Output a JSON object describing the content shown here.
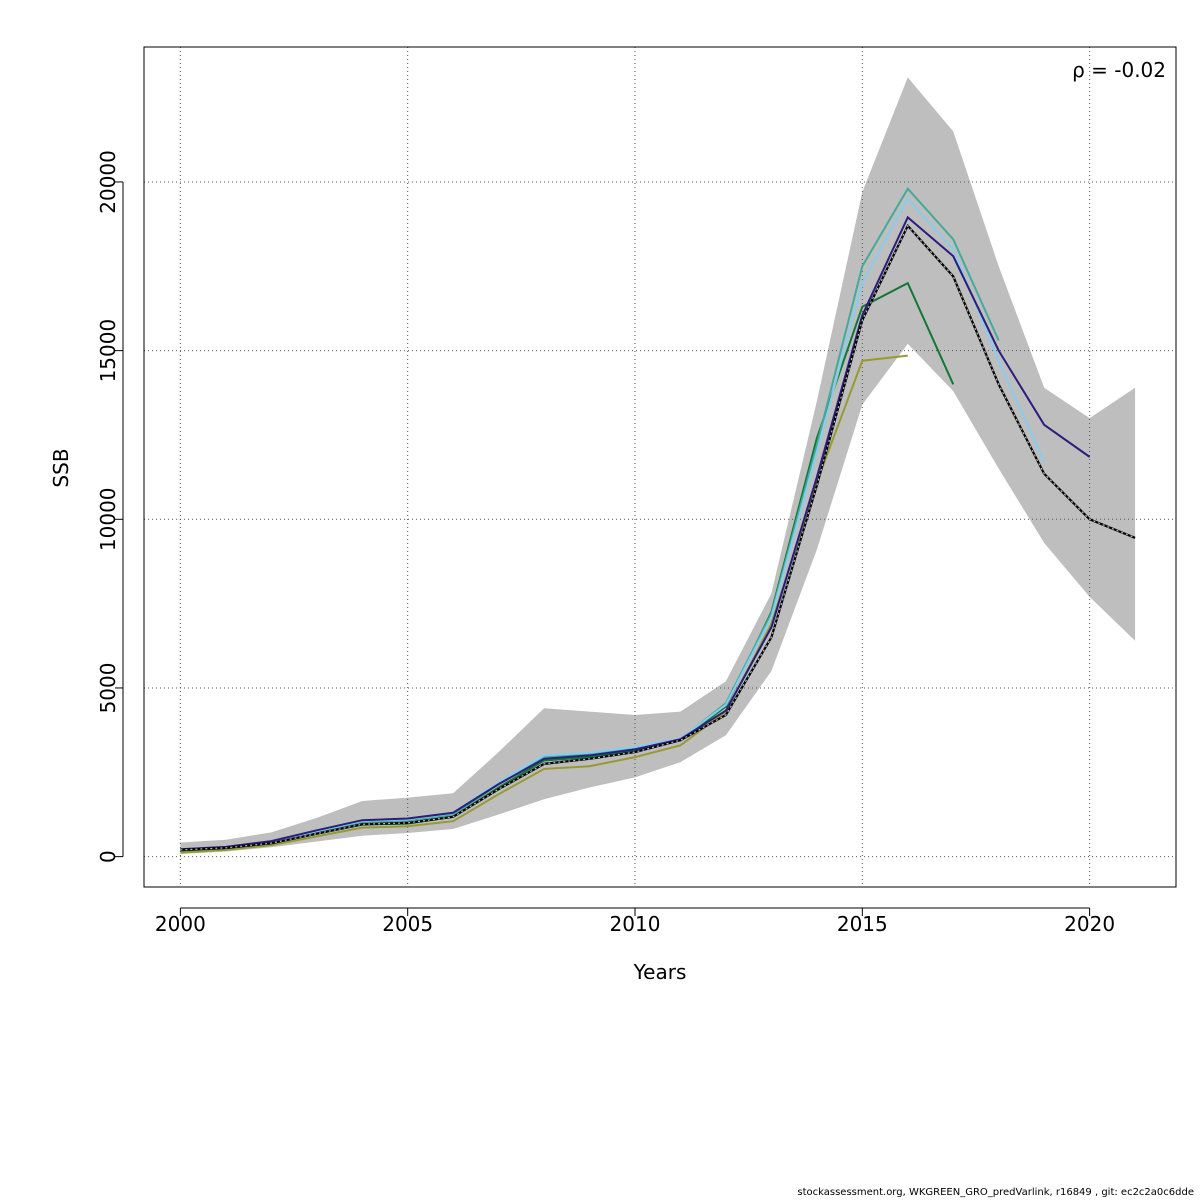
{
  "chart_data": {
    "type": "line",
    "xlabel": "Years",
    "ylabel": "SSB",
    "annotation": "ρ = -0.02",
    "xlim": [
      1999.2,
      2021.9
    ],
    "ylim": [
      -900,
      24000
    ],
    "x_ticks": [
      2000,
      2005,
      2010,
      2015,
      2020
    ],
    "y_ticks": [
      0,
      5000,
      10000,
      15000,
      20000
    ],
    "grid": true,
    "confidence_band": {
      "x": [
        2000,
        2001,
        2002,
        2003,
        2004,
        2005,
        2006,
        2007,
        2008,
        2009,
        2010,
        2011,
        2012,
        2013,
        2014,
        2015,
        2016,
        2017,
        2018,
        2019,
        2020,
        2021
      ],
      "lower": [
        80,
        150,
        280,
        450,
        620,
        700,
        820,
        1250,
        1700,
        2050,
        2350,
        2800,
        3600,
        5500,
        9100,
        13400,
        15200,
        13800,
        11500,
        9300,
        7700,
        6400
      ],
      "upper": [
        420,
        500,
        720,
        1150,
        1650,
        1750,
        1880,
        3100,
        4400,
        4300,
        4200,
        4300,
        5200,
        7800,
        13500,
        19700,
        23100,
        21500,
        17500,
        13900,
        13000,
        13900
      ]
    },
    "series": [
      {
        "color": "#333333",
        "dashed": true,
        "x": [
          2000,
          2001,
          2002,
          2003,
          2004,
          2005,
          2006,
          2007,
          2008,
          2009,
          2010,
          2011,
          2012,
          2013,
          2014,
          2015,
          2016,
          2017,
          2018,
          2019,
          2020,
          2021
        ],
        "values": [
          200,
          260,
          400,
          680,
          960,
          1000,
          1180,
          2000,
          2750,
          2900,
          3100,
          3450,
          4200,
          6500,
          11000,
          15900,
          18700,
          17200,
          14000,
          11350,
          10000,
          9450
        ]
      },
      {
        "color": "#2b1d7e",
        "dashed": false,
        "x": [
          2000,
          2001,
          2002,
          2003,
          2004,
          2005,
          2006,
          2007,
          2008,
          2009,
          2010,
          2011,
          2012,
          2013,
          2014,
          2015,
          2016,
          2017,
          2018,
          2019,
          2020
        ],
        "values": [
          220,
          290,
          460,
          780,
          1080,
          1130,
          1300,
          2150,
          2900,
          3000,
          3180,
          3480,
          4330,
          6800,
          11250,
          16050,
          18950,
          17800,
          15000,
          12800,
          11850
        ]
      },
      {
        "color": "#88ccee",
        "dashed": false,
        "x": [
          2000,
          2001,
          2002,
          2003,
          2004,
          2005,
          2006,
          2007,
          2008,
          2009,
          2010,
          2011,
          2012,
          2013,
          2014,
          2015,
          2016,
          2017,
          2018,
          2019
        ],
        "values": [
          210,
          280,
          440,
          760,
          1060,
          1110,
          1290,
          2200,
          3000,
          3080,
          3250,
          3500,
          4500,
          7100,
          12000,
          17000,
          19500,
          18000,
          14700,
          11700
        ]
      },
      {
        "color": "#44aa99",
        "dashed": false,
        "x": [
          2000,
          2001,
          2002,
          2003,
          2004,
          2005,
          2006,
          2007,
          2008,
          2009,
          2010,
          2011,
          2012,
          2013,
          2014,
          2015,
          2016,
          2017,
          2018
        ],
        "values": [
          200,
          270,
          420,
          720,
          1000,
          1050,
          1230,
          2150,
          2950,
          3030,
          3200,
          3480,
          4550,
          7200,
          12200,
          17500,
          19800,
          18300,
          15300
        ]
      },
      {
        "color": "#117733",
        "dashed": false,
        "x": [
          2000,
          2001,
          2002,
          2003,
          2004,
          2005,
          2006,
          2007,
          2008,
          2009,
          2010,
          2011,
          2012,
          2013,
          2014,
          2015,
          2016,
          2017
        ],
        "values": [
          180,
          250,
          390,
          680,
          950,
          980,
          1180,
          2050,
          2850,
          2950,
          3150,
          3450,
          4450,
          7250,
          12400,
          16300,
          17000,
          14000
        ]
      },
      {
        "color": "#999933",
        "dashed": false,
        "x": [
          2000,
          2001,
          2002,
          2003,
          2004,
          2005,
          2006,
          2007,
          2008,
          2009,
          2010,
          2011,
          2012,
          2013,
          2014,
          2015,
          2016
        ],
        "values": [
          120,
          200,
          340,
          600,
          860,
          900,
          1050,
          1850,
          2600,
          2680,
          2950,
          3300,
          4300,
          6900,
          11100,
          14700,
          14850
        ]
      }
    ]
  },
  "footer_text": "stockassessment.org, WKGREEN_GRO_predVarlink, r16849 , git: ec2c2a0c6dde"
}
